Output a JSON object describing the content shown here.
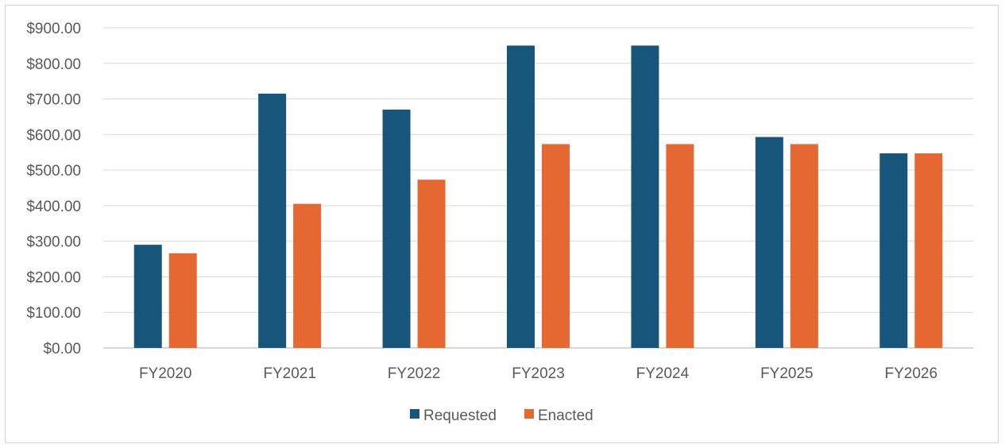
{
  "chart_data": {
    "type": "bar",
    "title": "",
    "xlabel": "",
    "ylabel": "",
    "categories": [
      "FY2020",
      "FY2021",
      "FY2022",
      "FY2023",
      "FY2024",
      "FY2025",
      "FY2026"
    ],
    "series": [
      {
        "name": "Requested",
        "color": "#17557a",
        "values": [
          290,
          715,
          670,
          850,
          850,
          593,
          547
        ]
      },
      {
        "name": "Enacted",
        "color": "#e56732",
        "values": [
          266,
          405,
          473,
          573,
          573,
          573,
          547
        ]
      }
    ],
    "ylim": [
      0,
      900
    ],
    "yticks": [
      0,
      100,
      200,
      300,
      400,
      500,
      600,
      700,
      800,
      900
    ],
    "ytick_labels": [
      "$0.00",
      "$100.00",
      "$200.00",
      "$300.00",
      "$400.00",
      "$500.00",
      "$600.00",
      "$700.00",
      "$800.00",
      "$900.00"
    ],
    "grid": true,
    "legend_position": "bottom-center"
  }
}
